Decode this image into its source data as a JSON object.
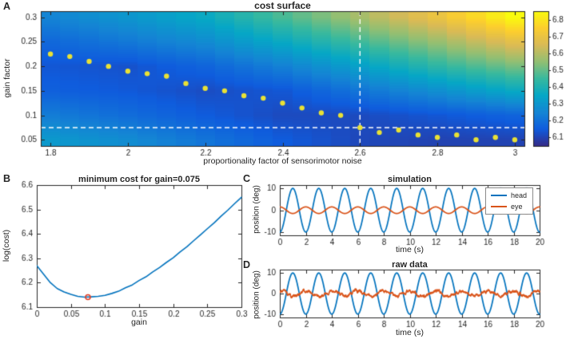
{
  "panel_letters": {
    "a": "A",
    "b": "B",
    "c": "C",
    "d": "D"
  },
  "chart_data": [
    {
      "panel_label": "A",
      "type": "heatmap",
      "title": "cost surface",
      "xlabel": "proportionality factor of sensorimotor noise",
      "ylabel": "gain factor",
      "xlim": [
        1.775,
        3.025
      ],
      "ylim": [
        0.0375,
        0.3125
      ],
      "xticks": [
        1.8,
        2,
        2.2,
        2.4,
        2.6,
        2.8,
        3
      ],
      "xticklabels": [
        "1.8",
        "2",
        "2.2",
        "2.4",
        "2.6",
        "2.8",
        "3"
      ],
      "yticks": [
        0.05,
        0.1,
        0.15,
        0.2,
        0.25,
        0.3
      ],
      "yticklabels": [
        "0.05",
        "0.1",
        "0.15",
        "0.2",
        "0.25",
        "0.3"
      ],
      "clim": [
        6.05,
        6.85
      ],
      "colorbar_ticks": [
        6.1,
        6.2,
        6.3,
        6.4,
        6.5,
        6.6,
        6.7,
        6.8
      ],
      "colorbar_ticklabels": [
        "6.1",
        "6.2",
        "6.3",
        "6.4",
        "6.5",
        "6.6",
        "6.7",
        "6.8"
      ],
      "colormap": [
        "#352a87",
        "#0f5cdd",
        "#1485d4",
        "#06a7c6",
        "#38b99e",
        "#92bf73",
        "#d9ba56",
        "#fcce2e",
        "#f9fb0e"
      ],
      "x_step": 0.05,
      "grid_x": [
        1.8,
        2.0,
        2.2,
        2.4,
        2.6,
        2.8,
        3.0
      ],
      "grid_y": [
        0.05,
        0.1,
        0.15,
        0.2,
        0.25,
        0.3
      ],
      "values": [
        [
          6.31,
          6.27,
          6.21,
          6.15,
          6.11,
          6.1,
          6.1
        ],
        [
          6.23,
          6.19,
          6.15,
          6.115,
          6.115,
          6.14,
          6.17
        ],
        [
          6.16,
          6.145,
          6.12,
          6.14,
          6.21,
          6.28,
          6.36
        ],
        [
          6.14,
          6.13,
          6.17,
          6.24,
          6.33,
          6.43,
          6.52
        ],
        [
          6.18,
          6.22,
          6.27,
          6.36,
          6.46,
          6.56,
          6.68
        ],
        [
          6.25,
          6.3,
          6.36,
          6.47,
          6.58,
          6.7,
          6.85
        ]
      ],
      "min_dots": {
        "color": "#e9e135",
        "x": [
          1.8,
          1.85,
          1.9,
          1.95,
          2.0,
          2.05,
          2.1,
          2.15,
          2.2,
          2.25,
          2.3,
          2.35,
          2.4,
          2.45,
          2.5,
          2.55,
          2.6,
          2.65,
          2.7,
          2.75,
          2.8,
          2.85,
          2.9,
          2.95,
          3.0
        ],
        "y": [
          0.225,
          0.22,
          0.21,
          0.2,
          0.19,
          0.185,
          0.18,
          0.165,
          0.155,
          0.15,
          0.14,
          0.135,
          0.125,
          0.115,
          0.105,
          0.1,
          0.075,
          0.065,
          0.07,
          0.06,
          0.055,
          0.06,
          0.05,
          0.055,
          0.05
        ]
      },
      "crosshair": {
        "x": 2.6,
        "y": 0.075,
        "color": "#ffffff"
      }
    },
    {
      "panel_label": "B",
      "type": "line",
      "title": "minimum cost for gain=0.075",
      "xlabel": "gain",
      "ylabel": "log(cost)",
      "xlim": [
        0,
        0.3
      ],
      "ylim": [
        6.1,
        6.6
      ],
      "xticks": [
        0,
        0.05,
        0.1,
        0.15,
        0.2,
        0.25,
        0.3
      ],
      "xticklabels": [
        "0",
        "0.05",
        "0.1",
        "0.15",
        "0.2",
        "0.25",
        "0.3"
      ],
      "yticks": [
        6.1,
        6.2,
        6.3,
        6.4,
        6.5,
        6.6
      ],
      "yticklabels": [
        "6.1",
        "6.2",
        "6.3",
        "6.4",
        "6.5",
        "6.6"
      ],
      "line_color": "#0072bd",
      "x": [
        0,
        0.01,
        0.02,
        0.03,
        0.04,
        0.05,
        0.06,
        0.07,
        0.08,
        0.09,
        0.1,
        0.11,
        0.12,
        0.13,
        0.14,
        0.15,
        0.16,
        0.17,
        0.18,
        0.19,
        0.2,
        0.21,
        0.22,
        0.23,
        0.24,
        0.25,
        0.26,
        0.27,
        0.28,
        0.29,
        0.3
      ],
      "y": [
        6.27,
        6.235,
        6.2,
        6.176,
        6.162,
        6.152,
        6.144,
        6.141,
        6.142,
        6.144,
        6.148,
        6.156,
        6.165,
        6.179,
        6.191,
        6.209,
        6.224,
        6.244,
        6.262,
        6.283,
        6.302,
        6.326,
        6.347,
        6.372,
        6.396,
        6.421,
        6.445,
        6.472,
        6.497,
        6.524,
        6.55
      ],
      "marker": {
        "x": 0.075,
        "y": 6.141,
        "color": "#e03a21"
      }
    },
    {
      "panel_label": "C",
      "type": "line",
      "title": "simulation",
      "xlabel": "time (s)",
      "ylabel": "position (deg)",
      "xlim": [
        0,
        20
      ],
      "ylim": [
        -11.5,
        11.5
      ],
      "xticks": [
        0,
        2,
        4,
        6,
        8,
        10,
        12,
        14,
        16,
        18,
        20
      ],
      "xticklabels": [
        "0",
        "2",
        "4",
        "6",
        "8",
        "10",
        "12",
        "14",
        "16",
        "18",
        "20"
      ],
      "yticks": [
        -10,
        0,
        10
      ],
      "yticklabels": [
        "-10",
        "0",
        "10"
      ],
      "duration_s": 20,
      "sample_step_s": 0.02,
      "noise_seed": 7,
      "series": [
        {
          "name": "head",
          "color": "#0072bd",
          "amplitude_deg": 10,
          "frequency_hz": 0.5,
          "phase_deg": -90,
          "noise_deg": 0
        },
        {
          "name": "eye",
          "color": "#d95319",
          "amplitude_deg": 1.5,
          "frequency_hz": 0.5,
          "phase_deg": 90,
          "noise_deg": 0
        }
      ],
      "legend": {
        "entries": [
          "head",
          "eye"
        ],
        "position": "northeast"
      }
    },
    {
      "panel_label": "D",
      "type": "line",
      "title": "raw data",
      "xlabel": "time (s)",
      "ylabel": "position (deg)",
      "xlim": [
        0,
        20
      ],
      "ylim": [
        -11.5,
        11.5
      ],
      "xticks": [
        0,
        2,
        4,
        6,
        8,
        10,
        12,
        14,
        16,
        18,
        20
      ],
      "xticklabels": [
        "0",
        "2",
        "4",
        "6",
        "8",
        "10",
        "12",
        "14",
        "16",
        "18",
        "20"
      ],
      "yticks": [
        -10,
        0,
        10
      ],
      "yticklabels": [
        "-10",
        "0",
        "10"
      ],
      "duration_s": 20,
      "sample_step_s": 0.02,
      "noise_seed": 12,
      "series": [
        {
          "name": "head",
          "color": "#0072bd",
          "amplitude_deg": 9.9,
          "frequency_hz": 0.5,
          "phase_deg": -90,
          "noise_deg": 0
        },
        {
          "name": "eye",
          "color": "#d95319",
          "amplitude_deg": 1.25,
          "frequency_hz": 0.5,
          "phase_deg": 90,
          "noise_deg": 0.55
        }
      ]
    }
  ]
}
